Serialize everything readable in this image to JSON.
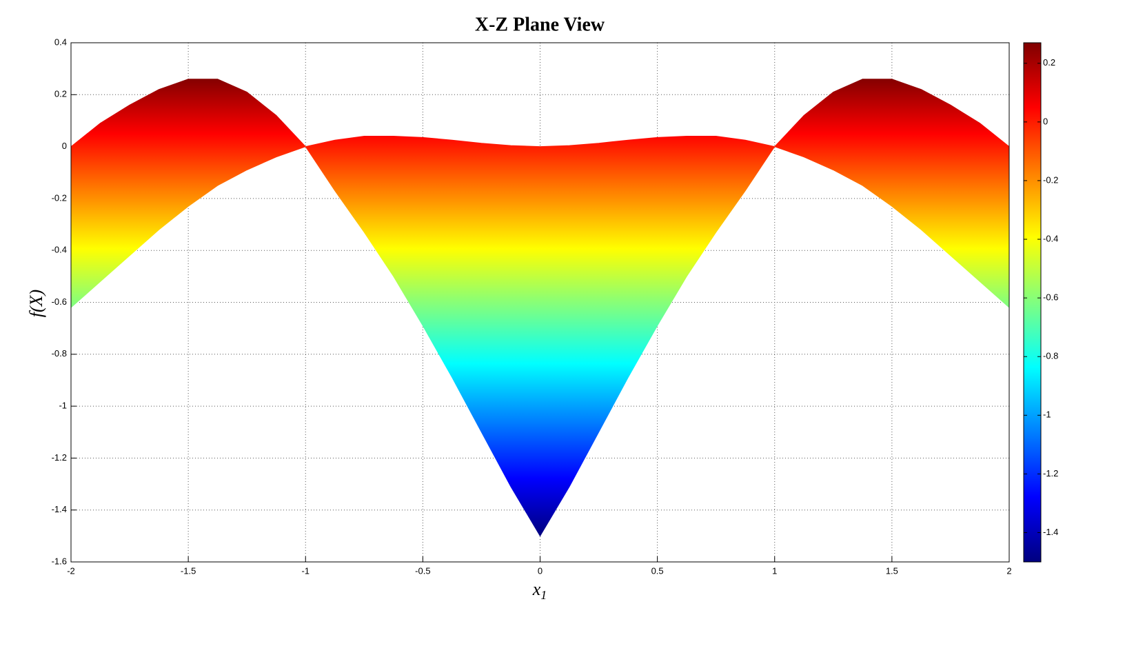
{
  "chart_data": {
    "type": "band",
    "title": "X-Z Plane View",
    "x_label": "x1",
    "y_label": "f(X)",
    "x": [
      -2,
      -1.875,
      -1.75,
      -1.625,
      -1.5,
      -1.375,
      -1.25,
      -1.125,
      -1,
      -0.875,
      -0.75,
      -0.625,
      -0.5,
      -0.375,
      -0.25,
      -0.125,
      0,
      0.125,
      0.25,
      0.375,
      0.5,
      0.625,
      0.75,
      0.875,
      1,
      1.125,
      1.25,
      1.375,
      1.5,
      1.625,
      1.75,
      1.875,
      2
    ],
    "series": [
      {
        "values": [
          0,
          0.09,
          0.16,
          0.22,
          0.26,
          0.26,
          0.21,
          0.12,
          0,
          0.025,
          0.04,
          0.04,
          0.035,
          0.025,
          0.013,
          0.004,
          0,
          0.004,
          0.013,
          0.025,
          0.035,
          0.04,
          0.04,
          0.025,
          0,
          0.12,
          0.21,
          0.26,
          0.26,
          0.22,
          0.16,
          0.09,
          0
        ]
      },
      {
        "values": [
          -0.62,
          -0.52,
          -0.42,
          -0.32,
          -0.23,
          -0.15,
          -0.09,
          -0.04,
          0,
          -0.17,
          -0.33,
          -0.5,
          -0.69,
          -0.89,
          -1.1,
          -1.31,
          -1.5,
          -1.31,
          -1.1,
          -0.89,
          -0.69,
          -0.5,
          -0.33,
          -0.17,
          0,
          -0.04,
          -0.09,
          -0.15,
          -0.23,
          -0.32,
          -0.42,
          -0.52,
          -0.62
        ]
      }
    ],
    "colormap": "jet",
    "xlim": [
      -2,
      2
    ],
    "xticks": [
      -2,
      -1.5,
      -1,
      -0.5,
      0,
      0.5,
      1,
      1.5,
      2
    ],
    "ylim": [
      -1.6,
      0.4
    ],
    "yticks": [
      0.4,
      0.2,
      0,
      -0.2,
      -0.4,
      -0.6,
      -0.8,
      -1,
      -1.2,
      -1.4,
      -1.6
    ],
    "clim": [
      -1.5,
      0.27
    ],
    "cticks": [
      0.2,
      0,
      -0.2,
      -0.4,
      -0.6,
      -0.8,
      -1,
      -1.2,
      -1.4
    ],
    "grid": true
  }
}
